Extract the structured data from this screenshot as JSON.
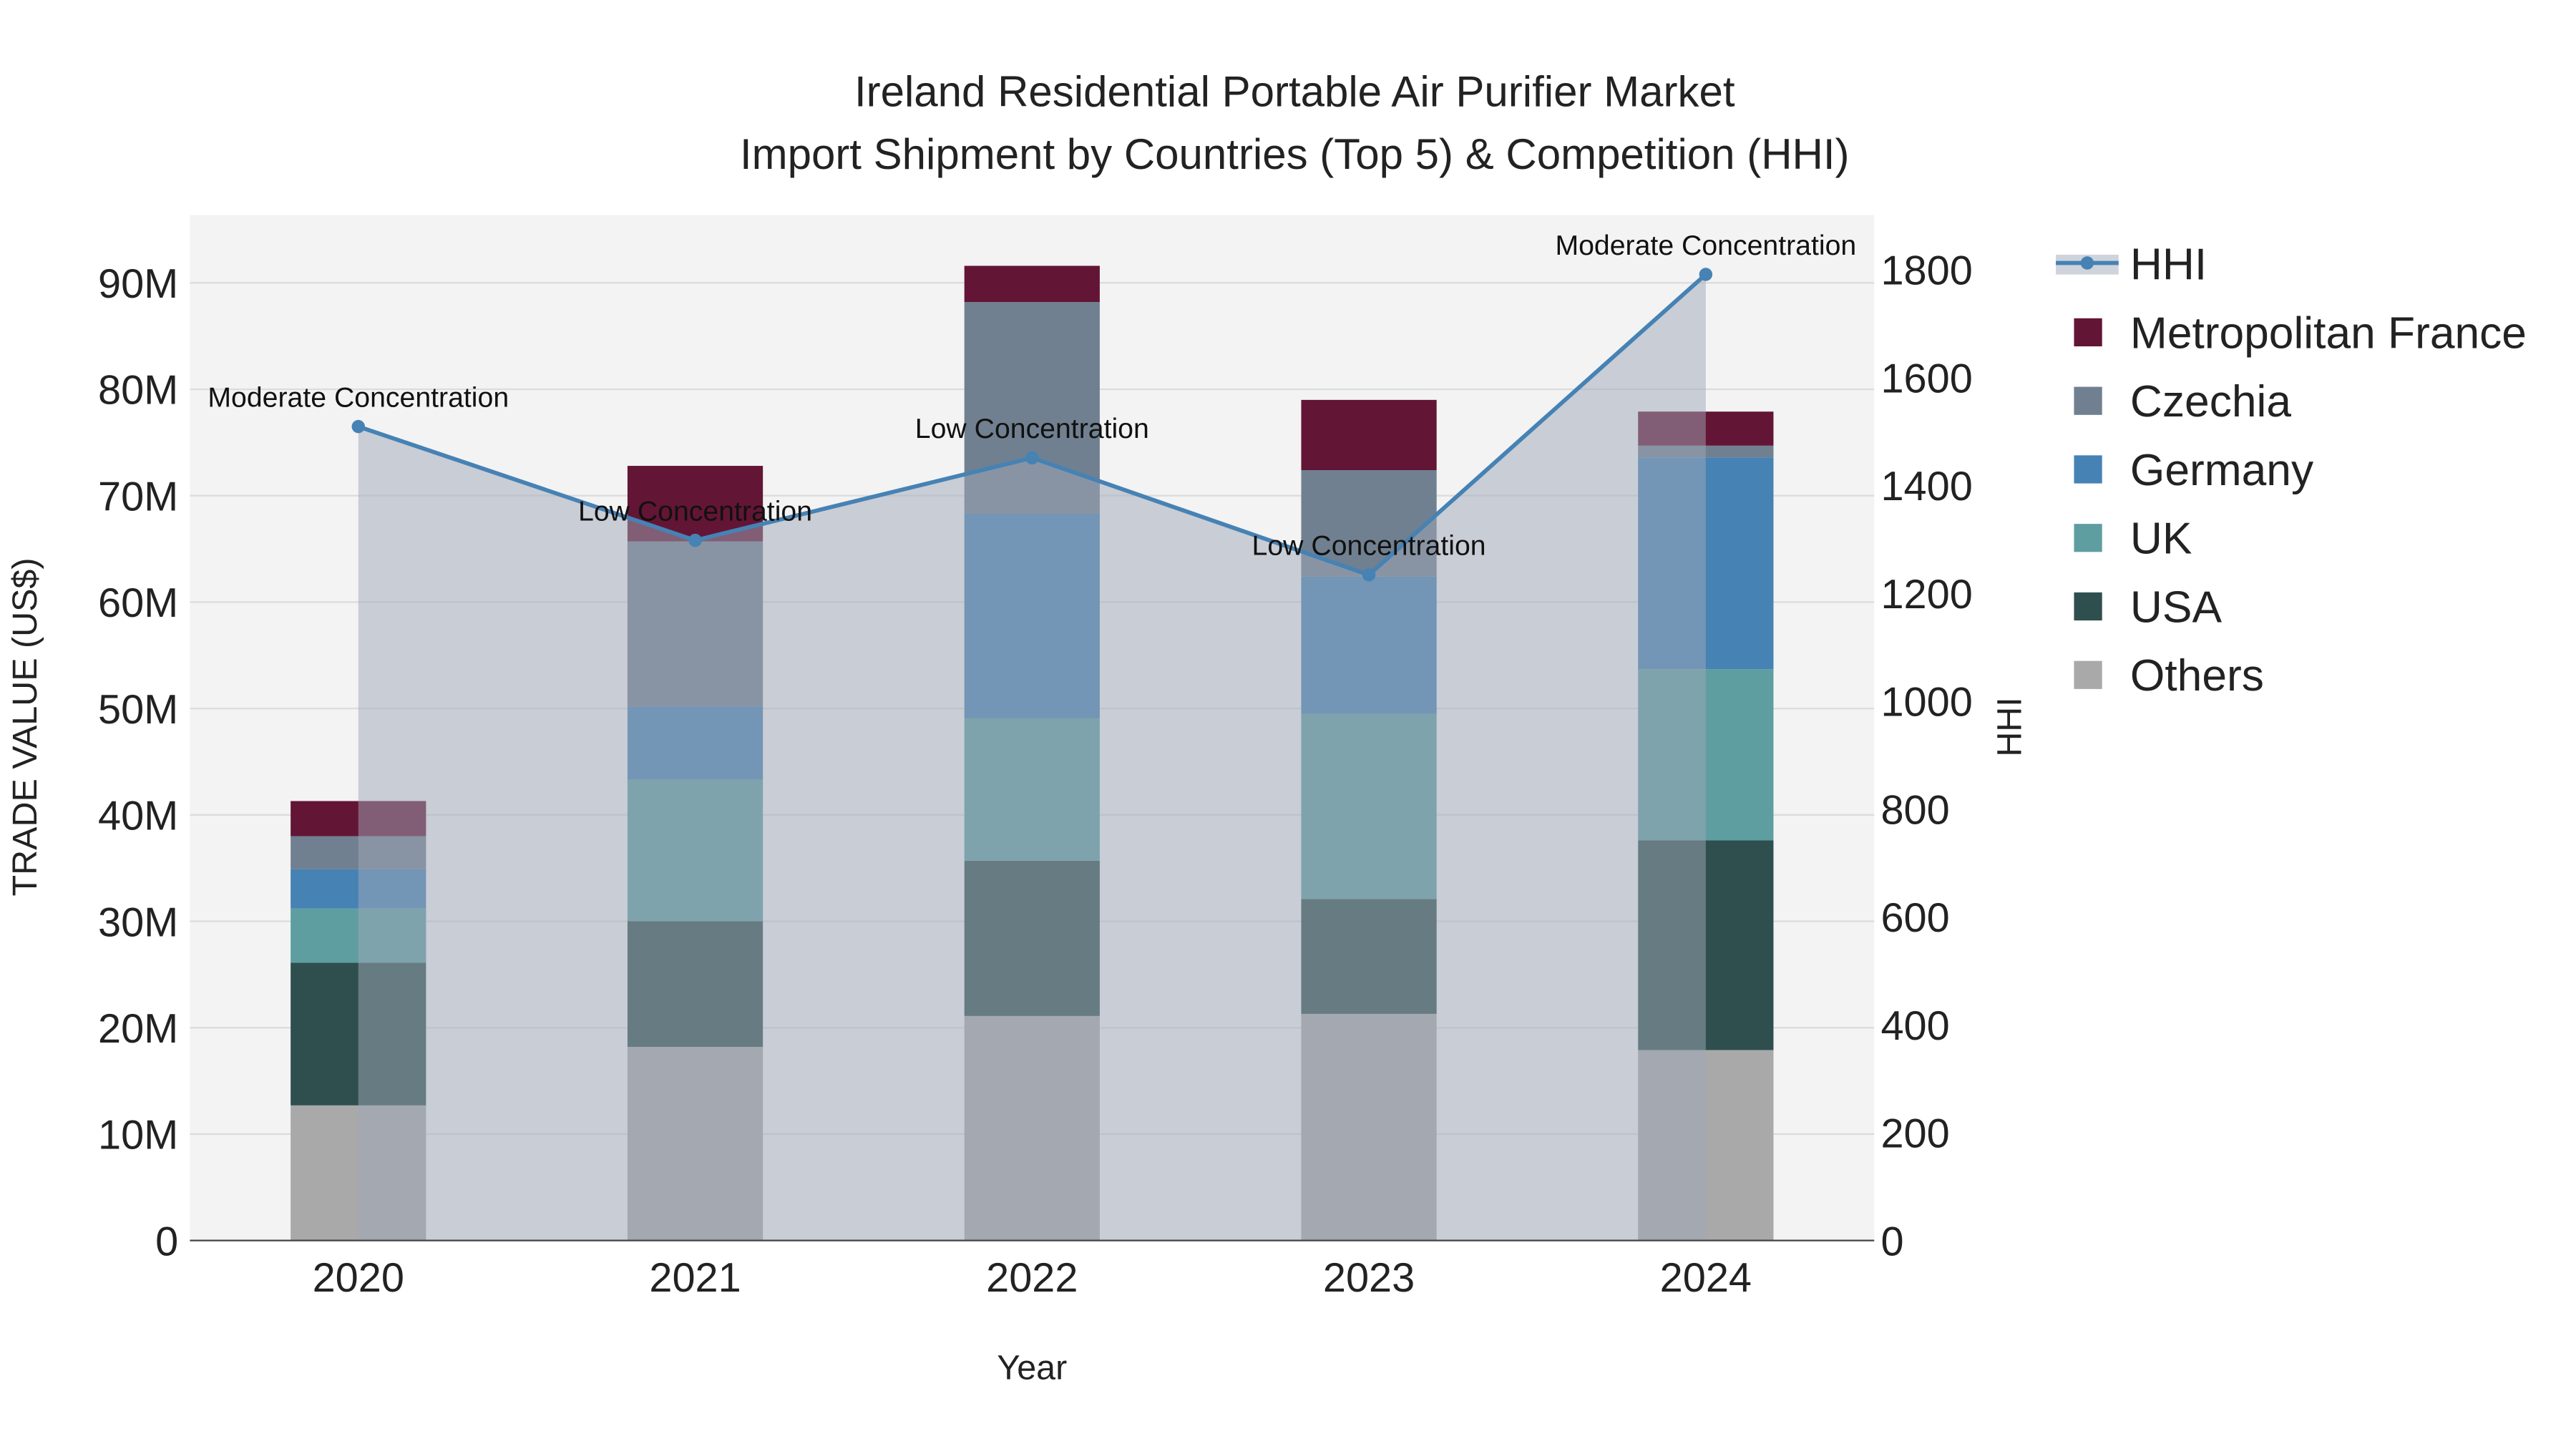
{
  "chart_data": {
    "type": "bar",
    "title_line1": "Ireland Residential Portable Air Purifier Market",
    "title_line2": "Import Shipment by Countries (Top 5) & Competition (HHI)",
    "xlabel": "Year",
    "ylabel": "TRADE VALUE (US$)",
    "y2label": "HHI",
    "categories": [
      "2020",
      "2021",
      "2022",
      "2023",
      "2024"
    ],
    "ylim": [
      0,
      95
    ],
    "y_ticks": [
      "0",
      "10M",
      "20M",
      "30M",
      "40M",
      "50M",
      "60M",
      "70M",
      "80M",
      "90M"
    ],
    "y2lim": [
      0,
      1900
    ],
    "y2_ticks": [
      "0",
      "200",
      "400",
      "600",
      "800",
      "1000",
      "1200",
      "1400",
      "1600",
      "1800"
    ],
    "series": [
      {
        "name": "Others",
        "color": "#a9a9a9",
        "values": [
          12.7,
          18.2,
          21.1,
          21.3,
          17.9
        ]
      },
      {
        "name": "USA",
        "color": "#2f4f4f",
        "values": [
          13.4,
          11.8,
          14.6,
          10.8,
          19.7
        ]
      },
      {
        "name": "UK",
        "color": "#5f9ea0",
        "values": [
          5.1,
          13.3,
          13.4,
          17.4,
          16.1
        ]
      },
      {
        "name": "Germany",
        "color": "#4682b4",
        "values": [
          3.7,
          6.9,
          19.2,
          12.9,
          19.9
        ]
      },
      {
        "name": "Czechia",
        "color": "#708090",
        "values": [
          3.1,
          15.5,
          19.9,
          10.0,
          1.1
        ]
      },
      {
        "name": "Metropolitan France",
        "color": "#631535",
        "values": [
          3.3,
          7.1,
          3.4,
          6.6,
          3.2
        ]
      }
    ],
    "hhi": {
      "name": "HHI",
      "color": "#4682b4",
      "values": [
        1509,
        1298,
        1451,
        1234,
        1791
      ],
      "annotations": [
        "Moderate Concentration",
        "Low Concentration",
        "Low Concentration",
        "Low Concentration",
        "Moderate Concentration"
      ]
    },
    "legend": [
      "HHI",
      "Metropolitan France",
      "Czechia",
      "Germany",
      "UK",
      "USA",
      "Others"
    ],
    "legend_position": "right",
    "grid": true
  }
}
